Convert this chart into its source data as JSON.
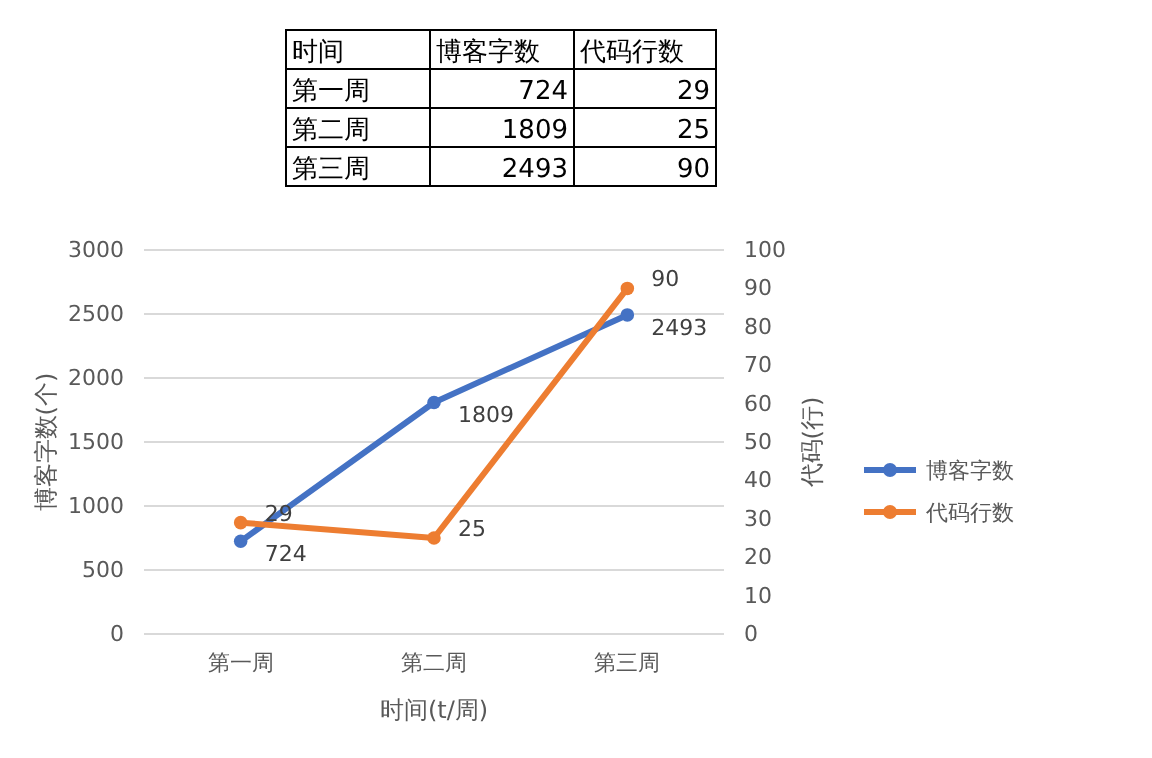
{
  "chart_data": {
    "type": "line",
    "categories": [
      "第一周",
      "第二周",
      "第三周"
    ],
    "xlabel": "时间(t/周)",
    "ylabel": "博客字数(个)",
    "y2label": "代码(行)",
    "annotations": [
      "时间",
      "724",
      "29",
      "1809",
      "25",
      "2493",
      "90"
    ],
    "series": [
      {
        "name": "博客字数",
        "color": "#4472c4",
        "values": [
          724,
          1809,
          2493
        ]
      },
      {
        "name": "代码行数",
        "color": "#ed7d31",
        "values": [
          29,
          25,
          90
        ],
        "axis": "y2"
      }
    ],
    "ylim": [
      0,
      3000
    ],
    "yticks": [
      0,
      500,
      1000,
      1500,
      2000,
      2500,
      3000
    ],
    "y2lim": [
      0,
      100
    ],
    "y2ticks": [
      0,
      10,
      20,
      30,
      40,
      50,
      60,
      70,
      80,
      90,
      100
    ],
    "grid": "y",
    "legend": "right",
    "marker": "circle",
    "line_style": "solid",
    "data_labels": true
  }
}
